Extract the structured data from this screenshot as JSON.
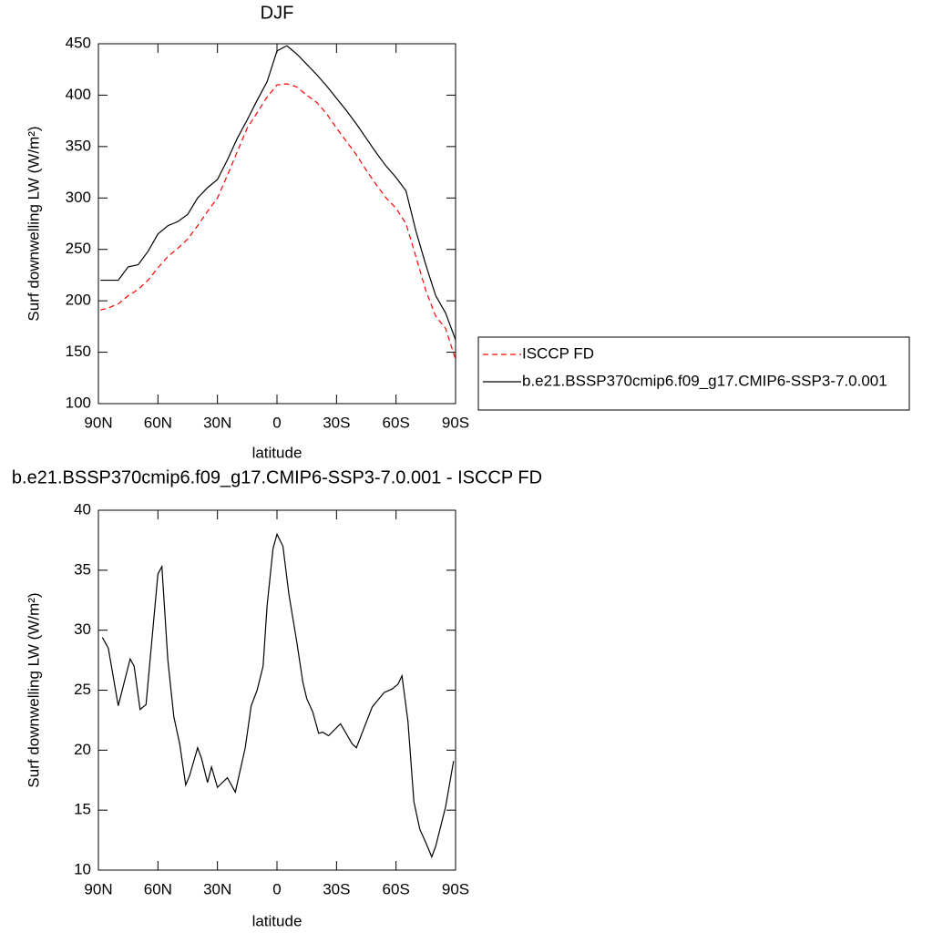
{
  "chart_data": [
    {
      "type": "line",
      "title": "DJF",
      "xlabel": "latitude",
      "ylabel": "Surf downwelling LW (W/m²)",
      "x": [
        89,
        85,
        80,
        75,
        70,
        65,
        60,
        55,
        50,
        45,
        40,
        35,
        30,
        25,
        20,
        15,
        10,
        5,
        0,
        -5,
        -10,
        -15,
        -20,
        -25,
        -30,
        -35,
        -40,
        -45,
        -50,
        -55,
        -60,
        -65,
        -70,
        -75,
        -80,
        -85,
        -90
      ],
      "series": [
        {
          "name": "ISCCP FD",
          "color": "#ff0000",
          "style": "dashed",
          "values": [
            191,
            193,
            197,
            205,
            211,
            220,
            232,
            243,
            251,
            260,
            273,
            287,
            300,
            322,
            345,
            368,
            383,
            398,
            410,
            411,
            408,
            400,
            393,
            382,
            368,
            355,
            342,
            327,
            313,
            300,
            290,
            275,
            243,
            210,
            185,
            173,
            143
          ]
        },
        {
          "name": "b.e21.BSSP370cmip6.f09_g17.CMIP6-SSP3-7.0.001",
          "color": "#000000",
          "style": "solid",
          "values": [
            220,
            220,
            220,
            233,
            235,
            248,
            265,
            273,
            277,
            284,
            300,
            310,
            318,
            337,
            358,
            376,
            395,
            413,
            443,
            448,
            440,
            430,
            420,
            409,
            397,
            385,
            372,
            358,
            344,
            331,
            320,
            307,
            268,
            235,
            205,
            188,
            162
          ]
        }
      ],
      "xlim": [
        90,
        -90
      ],
      "xticks": [
        {
          "value": 90,
          "label": "90N"
        },
        {
          "value": 60,
          "label": "60N"
        },
        {
          "value": 30,
          "label": "30N"
        },
        0,
        {
          "value": -30,
          "label": "30S"
        },
        {
          "value": -60,
          "label": "60S"
        },
        {
          "value": -90,
          "label": "90S"
        }
      ],
      "ylim": [
        100,
        450
      ],
      "yticks": [
        100,
        150,
        200,
        250,
        300,
        350,
        400,
        450
      ],
      "legend": "right"
    },
    {
      "type": "line",
      "title": "b.e21.BSSP370cmip6.f09_g17.CMIP6-SSP3-7.0.001 - ISCCP FD",
      "xlabel": "latitude",
      "ylabel": "Surf downwelling LW (W/m²)",
      "x": [
        88,
        85,
        80,
        74,
        72,
        69,
        66,
        60,
        58,
        55,
        52,
        49,
        46,
        44,
        40,
        38,
        35,
        33,
        30,
        25,
        21,
        16,
        13,
        10,
        7,
        5,
        2,
        0,
        -3,
        -6,
        -10,
        -13,
        -15,
        -18,
        -21,
        -23,
        -26,
        -32,
        -38,
        -40,
        -48,
        -50,
        -54,
        -58,
        -61,
        -63,
        -66,
        -69,
        -72,
        -75,
        -78,
        -80,
        -85,
        -89
      ],
      "series": [
        {
          "color": "#000000",
          "style": "solid",
          "values": [
            29.4,
            28.5,
            23.7,
            27.6,
            27,
            23.4,
            23.8,
            34.7,
            35.3,
            27.5,
            22.8,
            20.5,
            17.1,
            17.9,
            20.2,
            19.3,
            17.3,
            18.6,
            16.9,
            17.7,
            16.5,
            20.2,
            23.7,
            25,
            27,
            32,
            36.8,
            38,
            37,
            33,
            29,
            25.7,
            24.3,
            23.2,
            21.4,
            21.5,
            21.2,
            22.2,
            20.5,
            20.2,
            23.6,
            24,
            24.8,
            25.1,
            25.5,
            26.2,
            22.4,
            15.7,
            13.4,
            12.3,
            11.1,
            12,
            15.3,
            19.1
          ]
        }
      ],
      "xlim": [
        90,
        -90
      ],
      "xticks": [
        {
          "value": 90,
          "label": "90N"
        },
        {
          "value": 60,
          "label": "60N"
        },
        {
          "value": 30,
          "label": "30N"
        },
        0,
        {
          "value": -30,
          "label": "30S"
        },
        {
          "value": -60,
          "label": "60S"
        },
        {
          "value": -90,
          "label": "90S"
        }
      ],
      "ylim": [
        10,
        40
      ],
      "yticks": [
        10,
        15,
        20,
        25,
        30,
        35,
        40
      ]
    }
  ]
}
